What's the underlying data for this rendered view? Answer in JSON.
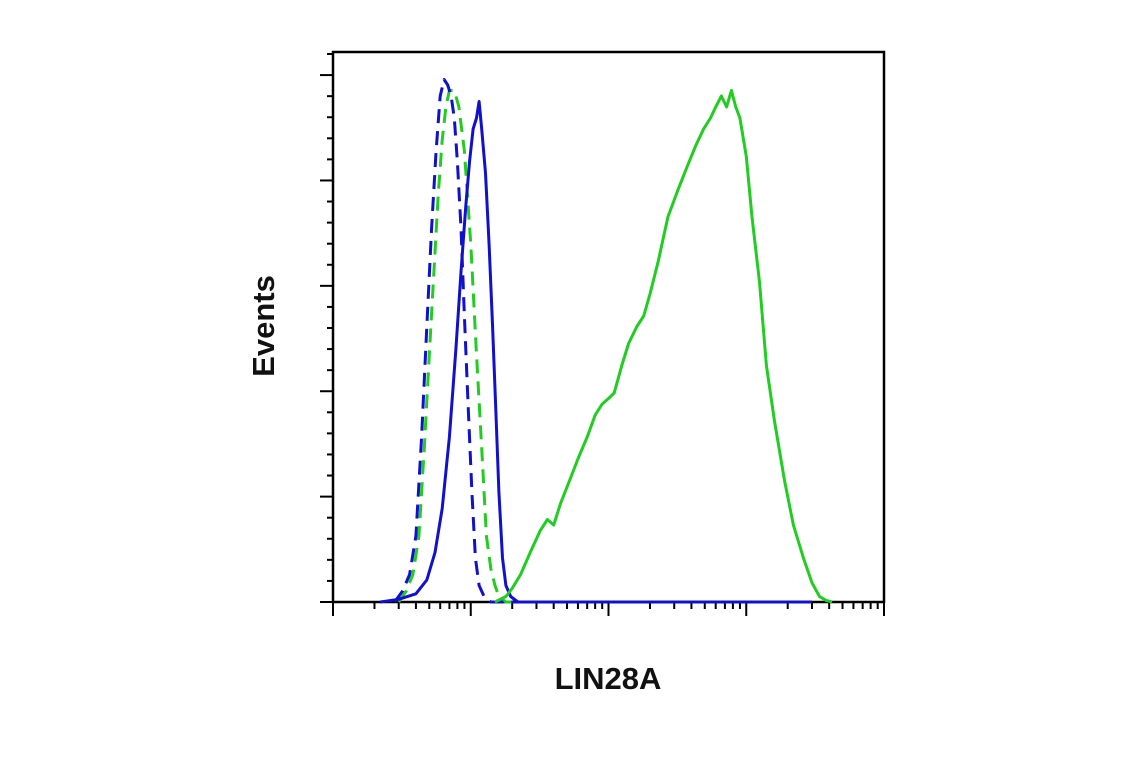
{
  "chart_data": {
    "type": "line",
    "xlabel": "LIN28A",
    "ylabel": "Events",
    "x_scale": "log",
    "xlim": [
      10,
      100000
    ],
    "ylim": [
      0,
      100
    ],
    "grid": false,
    "legend": false,
    "series": [
      {
        "color": "#22cc22",
        "dash": "dashed",
        "points": [
          [
            30,
            0
          ],
          [
            34,
            2
          ],
          [
            38,
            5
          ],
          [
            42,
            12
          ],
          [
            46,
            28
          ],
          [
            50,
            45
          ],
          [
            54,
            60
          ],
          [
            58,
            74
          ],
          [
            62,
            84
          ],
          [
            66,
            90
          ],
          [
            70,
            93
          ],
          [
            76,
            93
          ],
          [
            82,
            90
          ],
          [
            90,
            82
          ],
          [
            100,
            65
          ],
          [
            110,
            45
          ],
          [
            120,
            28
          ],
          [
            130,
            12
          ],
          [
            140,
            6
          ],
          [
            150,
            3
          ],
          [
            160,
            1
          ],
          [
            180,
            0
          ],
          [
            300,
            0
          ],
          [
            30000,
            0
          ]
        ]
      },
      {
        "color": "#1111cc",
        "dash": "dashed",
        "points": [
          [
            28,
            0
          ],
          [
            32,
            2
          ],
          [
            36,
            5
          ],
          [
            40,
            12
          ],
          [
            44,
            30
          ],
          [
            48,
            50
          ],
          [
            52,
            68
          ],
          [
            56,
            82
          ],
          [
            60,
            92
          ],
          [
            64,
            95
          ],
          [
            68,
            94
          ],
          [
            72,
            92
          ],
          [
            76,
            88
          ],
          [
            80,
            80
          ],
          [
            85,
            68
          ],
          [
            90,
            52
          ],
          [
            96,
            35
          ],
          [
            102,
            20
          ],
          [
            108,
            8
          ],
          [
            115,
            3
          ],
          [
            125,
            1
          ],
          [
            140,
            0
          ],
          [
            300,
            0
          ],
          [
            30000,
            0
          ]
        ]
      },
      {
        "color": "#1111cc",
        "dash": "solid",
        "points": [
          [
            22,
            0
          ],
          [
            30,
            0.5
          ],
          [
            40,
            1.5
          ],
          [
            48,
            4
          ],
          [
            55,
            9
          ],
          [
            62,
            17
          ],
          [
            70,
            30
          ],
          [
            78,
            46
          ],
          [
            85,
            60
          ],
          [
            92,
            72
          ],
          [
            98,
            80
          ],
          [
            104,
            86
          ],
          [
            110,
            88
          ],
          [
            115,
            91
          ],
          [
            120,
            86
          ],
          [
            128,
            78
          ],
          [
            136,
            65
          ],
          [
            144,
            50
          ],
          [
            152,
            35
          ],
          [
            160,
            20
          ],
          [
            170,
            8
          ],
          [
            180,
            3
          ],
          [
            195,
            1
          ],
          [
            220,
            0
          ],
          [
            30000,
            0
          ]
        ]
      },
      {
        "color": "#22cc22",
        "dash": "solid",
        "points": [
          [
            150,
            0
          ],
          [
            180,
            1
          ],
          [
            200,
            2.5
          ],
          [
            230,
            5
          ],
          [
            270,
            9
          ],
          [
            320,
            13
          ],
          [
            360,
            15
          ],
          [
            400,
            14
          ],
          [
            450,
            18
          ],
          [
            520,
            22
          ],
          [
            600,
            26
          ],
          [
            700,
            30
          ],
          [
            800,
            34
          ],
          [
            900,
            36
          ],
          [
            1000,
            37
          ],
          [
            1100,
            38
          ],
          [
            1250,
            43
          ],
          [
            1400,
            47
          ],
          [
            1600,
            50
          ],
          [
            1800,
            52
          ],
          [
            2000,
            56
          ],
          [
            2300,
            62
          ],
          [
            2700,
            70
          ],
          [
            3200,
            75
          ],
          [
            3700,
            79
          ],
          [
            4300,
            83
          ],
          [
            4900,
            86
          ],
          [
            5500,
            88
          ],
          [
            6000,
            90
          ],
          [
            6600,
            92
          ],
          [
            7200,
            90
          ],
          [
            7800,
            93
          ],
          [
            8400,
            90
          ],
          [
            9000,
            88
          ],
          [
            10000,
            81
          ],
          [
            11000,
            70
          ],
          [
            12500,
            58
          ],
          [
            14000,
            43
          ],
          [
            16000,
            33
          ],
          [
            19000,
            22
          ],
          [
            22000,
            14
          ],
          [
            26000,
            8
          ],
          [
            30000,
            3.5
          ],
          [
            34000,
            1
          ],
          [
            38000,
            0.3
          ],
          [
            42000,
            0
          ]
        ]
      }
    ]
  }
}
